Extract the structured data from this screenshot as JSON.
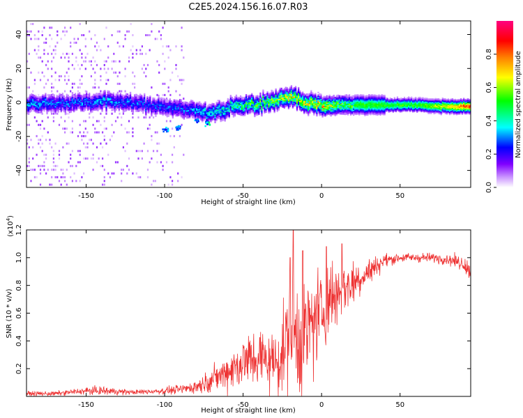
{
  "title": "C2E5.2024.156.16.07.R03",
  "chart_data": [
    {
      "type": "heatmap",
      "name": "spectrogram",
      "xlabel": "Height of straight line (km)",
      "ylabel": "Frequency (Hz)",
      "xlim": [
        -188,
        95
      ],
      "ylim": [
        -50,
        48
      ],
      "xticks": [
        -150,
        -100,
        -50,
        0,
        50
      ],
      "xtick_labels": [
        "-150",
        "-100",
        "-50",
        "0",
        "50"
      ],
      "yticks": [
        -40,
        -20,
        0,
        20,
        40
      ],
      "ytick_labels": [
        "-40",
        "-20",
        "0",
        "20",
        "40"
      ],
      "colorbar": {
        "label": "Normalized spectral amplitude",
        "range": [
          0,
          1
        ],
        "ticks": [
          0.0,
          0.2,
          0.4,
          0.6,
          0.8
        ],
        "tick_labels": [
          "0.0",
          "0.2",
          "0.4",
          "0.6",
          "0.8"
        ],
        "colors": [
          "#ffffff",
          "#8000ff",
          "#0000ff",
          "#00ffff",
          "#00ff00",
          "#ffff00",
          "#ff8000",
          "#ff0000",
          "#ff0080"
        ]
      },
      "ridge": {
        "x": [
          -185,
          -160,
          -140,
          -120,
          -100,
          -90,
          -80,
          -72,
          -60,
          -45,
          -30,
          -20,
          -10,
          0,
          10,
          20,
          40,
          60,
          80,
          95
        ],
        "freq": [
          -1,
          0,
          1,
          0,
          -2,
          -3,
          -5,
          -6,
          -3,
          -1,
          2,
          3,
          1,
          -2,
          -1,
          -1,
          -1,
          -1,
          -2,
          -2
        ],
        "amplitude": [
          0.35,
          0.3,
          0.35,
          0.3,
          0.3,
          0.3,
          0.35,
          0.4,
          0.45,
          0.55,
          0.6,
          0.7,
          0.7,
          0.75,
          0.6,
          0.55,
          0.55,
          0.55,
          0.7,
          0.9
        ]
      },
      "outliers": [
        {
          "x": -100,
          "freq": -16,
          "amplitude": 0.3
        },
        {
          "x": -92,
          "freq": -15,
          "amplitude": 0.3
        },
        {
          "x": -80,
          "freq": -10,
          "amplitude": 0.3
        },
        {
          "x": -73,
          "freq": -12,
          "amplitude": 0.4
        }
      ],
      "noise_region_x": [
        -188,
        -88
      ]
    },
    {
      "type": "line",
      "name": "snr",
      "xlabel": "Height of straight line (km)",
      "ylabel": "SNR (10 * v/v)",
      "scale_label": "(x10",
      "scale_exponent": "4",
      "xlim": [
        -188,
        95
      ],
      "ylim": [
        0,
        1.2
      ],
      "xticks": [
        -150,
        -100,
        -50,
        0,
        50
      ],
      "xtick_labels": [
        "-150",
        "-100",
        "-50",
        "0",
        "50"
      ],
      "yticks": [
        0.2,
        0.4,
        0.6,
        0.8,
        1.0,
        1.2
      ],
      "ytick_labels": [
        "0.2",
        "0.4",
        "0.6",
        "0.8",
        "1.0",
        "1.2"
      ],
      "color": "#ee3333",
      "envelope": {
        "x": [
          -188,
          -170,
          -150,
          -140,
          -120,
          -100,
          -90,
          -80,
          -70,
          -60,
          -50,
          -40,
          -30,
          -25,
          -20,
          -18,
          -15,
          -10,
          -5,
          0,
          5,
          10,
          20,
          30,
          40,
          50,
          60,
          70,
          80,
          90,
          95
        ],
        "mean": [
          0.02,
          0.02,
          0.04,
          0.04,
          0.03,
          0.04,
          0.05,
          0.07,
          0.12,
          0.18,
          0.25,
          0.28,
          0.25,
          0.3,
          0.5,
          0.45,
          0.4,
          0.45,
          0.55,
          0.6,
          0.7,
          0.75,
          0.82,
          0.9,
          0.98,
          1.0,
          1.0,
          1.0,
          0.99,
          0.96,
          0.9
        ],
        "noise": [
          0.01,
          0.01,
          0.015,
          0.02,
          0.01,
          0.015,
          0.02,
          0.03,
          0.05,
          0.08,
          0.12,
          0.14,
          0.13,
          0.18,
          0.25,
          0.28,
          0.25,
          0.25,
          0.22,
          0.2,
          0.18,
          0.15,
          0.1,
          0.06,
          0.03,
          0.02,
          0.02,
          0.02,
          0.025,
          0.03,
          0.04
        ]
      },
      "spikes": [
        {
          "x": -18,
          "y": 1.2
        },
        {
          "x": -20,
          "y": 1.0
        },
        {
          "x": -12,
          "y": 1.05
        },
        {
          "x": 13,
          "y": 1.1
        },
        {
          "x": 3,
          "y": 1.08
        }
      ]
    }
  ]
}
